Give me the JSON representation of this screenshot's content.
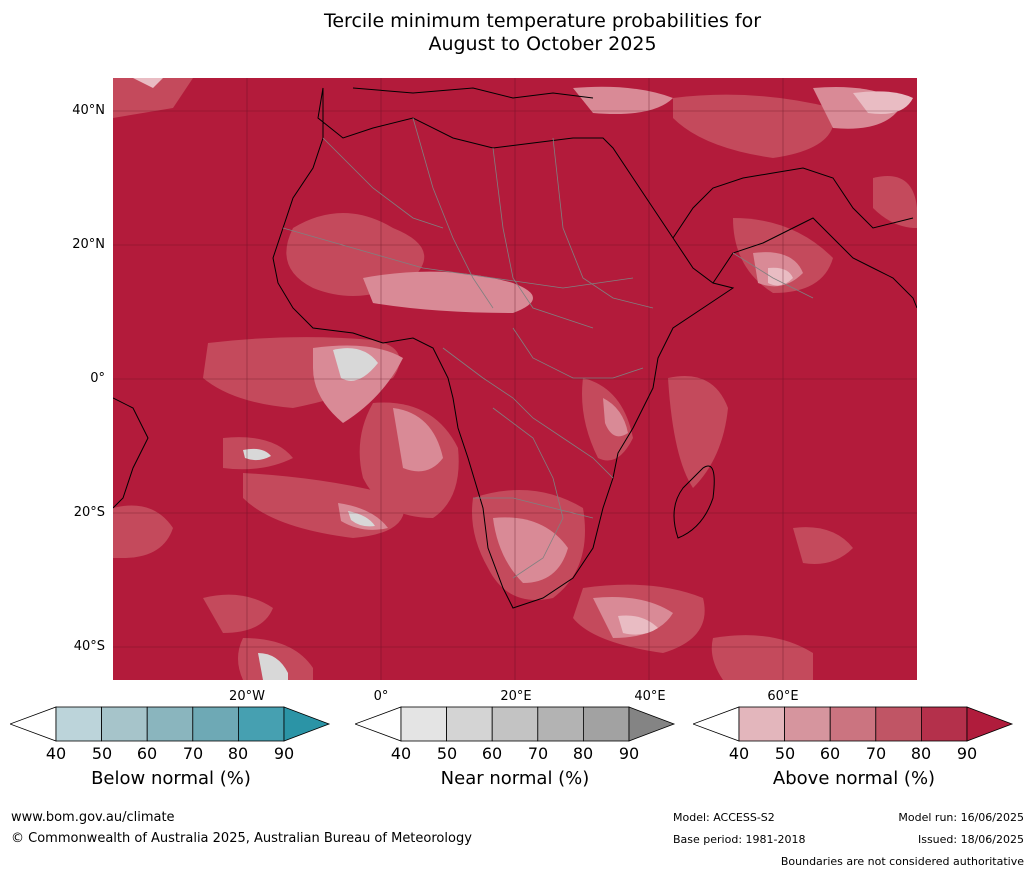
{
  "title_line1": "Tercile minimum temperature probabilities for",
  "title_line2": "August to October 2025",
  "lat_labels": [
    "40°N",
    "20°N",
    "0°",
    "20°S",
    "40°S"
  ],
  "lon_labels": [
    "20°W",
    "0°",
    "20°E",
    "40°E",
    "60°E"
  ],
  "colorbars": [
    {
      "label": "Below normal (%)",
      "ticks": [
        "40",
        "50",
        "60",
        "70",
        "80",
        "90"
      ],
      "colors": [
        "#ffffff",
        "#bcd4da",
        "#a6c4ca",
        "#8ab5be",
        "#6ea9b5",
        "#46a0b1",
        "#2b94a6"
      ]
    },
    {
      "label": "Near normal (%)",
      "ticks": [
        "40",
        "50",
        "60",
        "70",
        "80",
        "90"
      ],
      "colors": [
        "#ffffff",
        "#e4e4e4",
        "#d4d4d4",
        "#c3c3c3",
        "#b3b3b3",
        "#a2a2a2",
        "#848484"
      ]
    },
    {
      "label": "Above normal (%)",
      "ticks": [
        "40",
        "50",
        "60",
        "70",
        "80",
        "90"
      ],
      "colors": [
        "#ffffff",
        "#e3b6bc",
        "#d6959e",
        "#cb7480",
        "#c05565",
        "#b4304b",
        "#b01c3c"
      ]
    }
  ],
  "footer": {
    "website": "www.bom.gov.au/climate",
    "copyright": "© Commonwealth of Australia 2025, Australian Bureau of Meteorology",
    "model": "Model: ACCESS-S2",
    "base_period": "Base period: 1981-2018",
    "model_run": "Model run: 16/06/2025",
    "issued": "Issued: 18/06/2025",
    "disclaimer": "Boundaries are not considered authoritative"
  },
  "colors": {
    "dominant": "#b31b3b",
    "mid": "#c44a5c",
    "light": "#d98a96",
    "pale": "#e9bcc3",
    "grey": "#d8d8d8"
  }
}
